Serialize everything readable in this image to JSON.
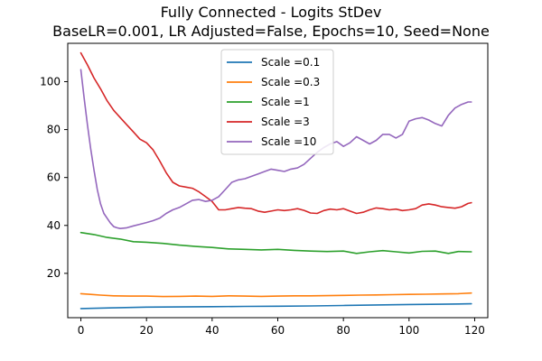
{
  "chart_data": {
    "type": "line",
    "title": "Fully Connected - Logits StDev",
    "subtitle": "BaseLR=0.001, LR Adjusted=False, Epochs=10, Seed=None",
    "xlabel": "",
    "ylabel": "",
    "xlim": [
      -4,
      124
    ],
    "ylim": [
      1.5,
      116
    ],
    "xticks": [
      0,
      20,
      40,
      60,
      80,
      100,
      120
    ],
    "yticks": [
      20,
      40,
      60,
      80,
      100
    ],
    "grid": false,
    "legend_position": "upper-center",
    "series": [
      {
        "name": "Scale =0.1",
        "color": "#1f77b4",
        "x": [
          0,
          10,
          20,
          30,
          40,
          50,
          60,
          70,
          80,
          90,
          100,
          110,
          119
        ],
        "y": [
          5.3,
          5.6,
          5.9,
          6.0,
          6.1,
          6.2,
          6.3,
          6.4,
          6.6,
          6.8,
          7.0,
          7.1,
          7.3
        ]
      },
      {
        "name": "Scale =0.3",
        "color": "#ff7f0e",
        "x": [
          0,
          3,
          6,
          10,
          15,
          20,
          25,
          30,
          35,
          40,
          45,
          50,
          55,
          60,
          65,
          70,
          75,
          80,
          85,
          90,
          95,
          100,
          105,
          110,
          115,
          119
        ],
        "y": [
          11.5,
          11.2,
          10.9,
          10.6,
          10.5,
          10.5,
          10.3,
          10.4,
          10.5,
          10.4,
          10.6,
          10.5,
          10.4,
          10.5,
          10.6,
          10.6,
          10.7,
          10.8,
          10.9,
          11.0,
          11.1,
          11.2,
          11.3,
          11.4,
          11.5,
          11.8
        ]
      },
      {
        "name": "Scale =1",
        "color": "#2ca02c",
        "x": [
          0,
          4,
          8,
          12,
          16,
          20,
          25,
          30,
          35,
          40,
          45,
          50,
          55,
          60,
          65,
          70,
          75,
          80,
          84,
          88,
          92,
          96,
          100,
          104,
          108,
          112,
          115,
          119
        ],
        "y": [
          37.0,
          36.2,
          35.0,
          34.3,
          33.2,
          33.0,
          32.5,
          31.8,
          31.2,
          30.8,
          30.2,
          30.0,
          29.8,
          30.0,
          29.6,
          29.3,
          29.1,
          29.3,
          28.3,
          29.0,
          29.5,
          29.0,
          28.5,
          29.2,
          29.3,
          28.3,
          29.1,
          29.0
        ]
      },
      {
        "name": "Scale =3",
        "color": "#d62728",
        "x": [
          0,
          2,
          4,
          6,
          8,
          10,
          12,
          14,
          16,
          18,
          20,
          22,
          24,
          26,
          28,
          30,
          32,
          34,
          36,
          38,
          40,
          42,
          44,
          46,
          48,
          50,
          52,
          54,
          56,
          58,
          60,
          62,
          64,
          66,
          68,
          70,
          72,
          74,
          76,
          78,
          80,
          82,
          84,
          86,
          88,
          90,
          92,
          94,
          96,
          98,
          100,
          102,
          104,
          106,
          108,
          110,
          112,
          114,
          116,
          118,
          119
        ],
        "y": [
          112.0,
          107.0,
          101.5,
          97.0,
          92.0,
          88.0,
          85.0,
          82.0,
          79.0,
          76.0,
          74.5,
          71.5,
          67.0,
          62.0,
          58.0,
          56.5,
          56.0,
          55.5,
          54.0,
          52.0,
          50.0,
          46.5,
          46.5,
          47.0,
          47.5,
          47.2,
          47.0,
          46.0,
          45.5,
          46.0,
          46.5,
          46.2,
          46.5,
          47.0,
          46.3,
          45.2,
          45.0,
          46.2,
          46.8,
          46.5,
          47.0,
          46.0,
          45.0,
          45.5,
          46.5,
          47.3,
          47.0,
          46.5,
          46.8,
          46.2,
          46.5,
          47.0,
          48.5,
          49.0,
          48.5,
          47.8,
          47.5,
          47.2,
          47.8,
          49.2,
          49.5
        ]
      },
      {
        "name": "Scale =10",
        "color": "#9467bd",
        "x": [
          0,
          1,
          2,
          3,
          4,
          5,
          6,
          7,
          8,
          9,
          10,
          11,
          12,
          14,
          16,
          18,
          20,
          22,
          24,
          26,
          28,
          30,
          32,
          34,
          36,
          38,
          40,
          42,
          44,
          46,
          48,
          50,
          52,
          54,
          56,
          58,
          60,
          62,
          64,
          66,
          68,
          70,
          72,
          74,
          76,
          78,
          80,
          82,
          84,
          86,
          88,
          90,
          92,
          94,
          96,
          98,
          100,
          102,
          104,
          106,
          108,
          110,
          112,
          114,
          116,
          118,
          119
        ],
        "y": [
          105.0,
          93.0,
          82.0,
          72.0,
          63.0,
          55.0,
          49.0,
          45.0,
          43.0,
          41.0,
          39.5,
          39.0,
          38.7,
          39.0,
          39.8,
          40.5,
          41.2,
          42.0,
          43.0,
          45.0,
          46.5,
          47.5,
          49.0,
          50.5,
          50.8,
          50.0,
          50.5,
          52.0,
          55.0,
          58.0,
          59.0,
          59.5,
          60.5,
          61.5,
          62.5,
          63.5,
          63.0,
          62.5,
          63.5,
          64.0,
          65.5,
          68.0,
          70.5,
          72.5,
          74.0,
          75.0,
          73.0,
          74.5,
          77.0,
          75.5,
          74.0,
          75.5,
          78.0,
          78.0,
          76.5,
          78.0,
          83.5,
          84.5,
          85.0,
          84.0,
          82.5,
          81.5,
          86.0,
          89.0,
          90.5,
          91.5,
          91.5
        ]
      }
    ]
  }
}
